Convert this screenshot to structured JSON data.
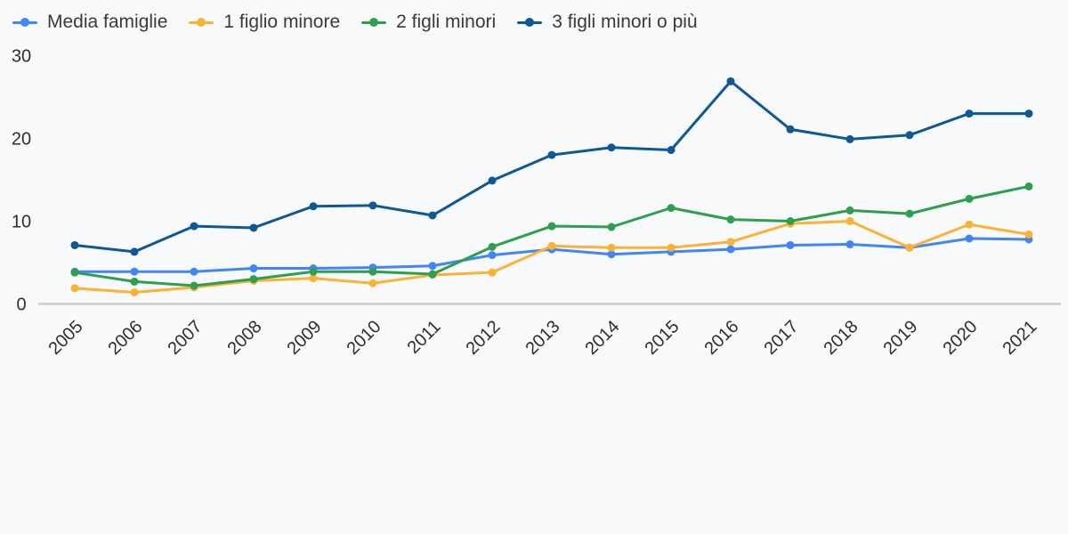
{
  "colors": {
    "background": "#f8f9fa",
    "axis_line": "#cccccc",
    "tick_text": "#2e2e2e",
    "legend_text": "#3a3a3a"
  },
  "chart_data": {
    "type": "line",
    "title": "",
    "xlabel": "",
    "ylabel": "",
    "x": [
      "2005",
      "2006",
      "2007",
      "2008",
      "2009",
      "2010",
      "2011",
      "2012",
      "2013",
      "2014",
      "2015",
      "2016",
      "2017",
      "2018",
      "2019",
      "2020",
      "2021"
    ],
    "yticks": [
      0,
      10,
      20,
      30
    ],
    "ylim": [
      0,
      30
    ],
    "grid": false,
    "legend_position": "top-left",
    "marker": "circle",
    "series": [
      {
        "name": "Media famiglie",
        "color": "#4285f4",
        "values": [
          3.9,
          3.9,
          3.9,
          4.3,
          4.3,
          4.4,
          4.6,
          5.9,
          6.6,
          6.0,
          6.3,
          6.6,
          7.1,
          7.2,
          6.8,
          7.9,
          7.8
        ]
      },
      {
        "name": "1 figlio minore",
        "color": "#f9b136",
        "values": [
          1.9,
          1.4,
          2.0,
          2.8,
          3.1,
          2.5,
          3.5,
          3.8,
          7.0,
          6.8,
          6.8,
          7.5,
          9.7,
          10.0,
          6.8,
          9.6,
          8.4
        ]
      },
      {
        "name": "2 figli minori",
        "color": "#2f9e4f",
        "values": [
          3.8,
          2.7,
          2.2,
          3.0,
          3.9,
          3.9,
          3.6,
          6.9,
          9.4,
          9.3,
          11.6,
          10.2,
          10.0,
          11.3,
          10.9,
          12.7,
          14.2
        ]
      },
      {
        "name": "3 figli minori o più",
        "color": "#0f5795",
        "values": [
          7.1,
          6.3,
          9.4,
          9.2,
          11.8,
          11.9,
          10.7,
          14.9,
          18.0,
          18.9,
          18.6,
          26.9,
          21.1,
          19.9,
          20.4,
          23.0,
          23.0
        ]
      }
    ]
  }
}
